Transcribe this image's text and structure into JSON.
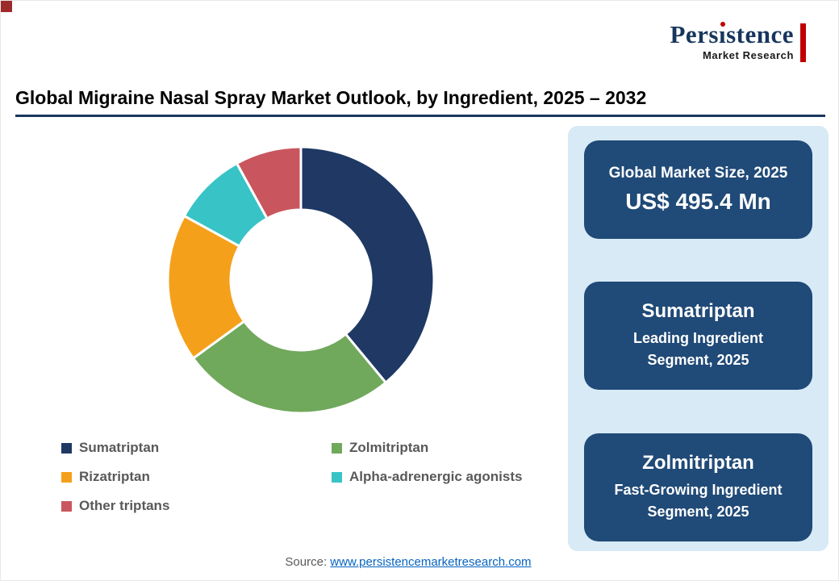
{
  "accents": {
    "navy": "#17365D",
    "red": "#C00000",
    "panel_bg": "#D7EAF6",
    "card_bg": "#204A77",
    "link_blue": "#0563C1",
    "legend_text": "#595959"
  },
  "logo": {
    "name": "Persistence",
    "subtitle": "Market Research"
  },
  "header": {
    "title": "Global Migraine Nasal Spray Market Outlook, by Ingredient, 2025 – 2032"
  },
  "chart_data": {
    "type": "pie",
    "donut": true,
    "title": "Global Migraine Nasal Spray Market Outlook, by Ingredient, 2025 – 2032",
    "categories": [
      "Sumatriptan",
      "Zolmitriptan",
      "Rizatriptan",
      "Alpha-adrenergic agonists",
      "Other triptans"
    ],
    "values": [
      39,
      26,
      18,
      9,
      8
    ],
    "unit": "% share (estimated from arc angles; no data labels shown)",
    "colors": [
      "#1F3864",
      "#70A85C",
      "#F5A01B",
      "#38C3C6",
      "#C9565E"
    ],
    "start_angle_deg": 0,
    "direction": "clockwise",
    "legend_position": "bottom-left"
  },
  "panel": {
    "cards": [
      {
        "label": "Global Market Size, 2025",
        "value": "US$ 495.4 Mn"
      },
      {
        "title": "Sumatriptan",
        "subtitle": "Leading Ingredient Segment, 2025"
      },
      {
        "title": "Zolmitriptan",
        "subtitle": "Fast-Growing Ingredient Segment, 2025"
      }
    ]
  },
  "footer": {
    "source_label": "Source:",
    "source_link": "www.persistencemarketresearch.com"
  }
}
